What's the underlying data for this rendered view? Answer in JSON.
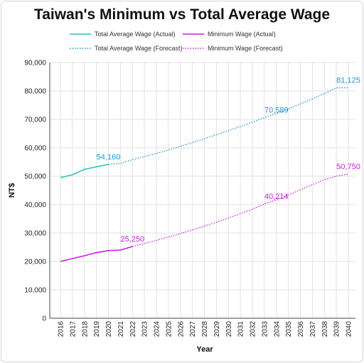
{
  "chart_data": {
    "type": "line",
    "title": "Taiwan's Minimum vs Total Average Wage",
    "xlabel": "Year",
    "ylabel": "NT$",
    "ylim": [
      0,
      90000
    ],
    "yticks": [
      0,
      10000,
      20000,
      30000,
      40000,
      50000,
      60000,
      70000,
      80000,
      90000
    ],
    "ytick_labels": [
      "0",
      "10,000",
      "20,000",
      "30,000",
      "40,000",
      "50,000",
      "60,000",
      "70,000",
      "80,000",
      "90,000"
    ],
    "xlim": [
      2016,
      2040
    ],
    "x_ticks": [
      "2016",
      "2017",
      "2018",
      "2019",
      "2020",
      "2021",
      "2022",
      "2023",
      "2024",
      "2025",
      "2026",
      "2027",
      "2028",
      "2029",
      "2030",
      "2031",
      "2032",
      "2033",
      "2034",
      "2035",
      "2036",
      "2037",
      "2038",
      "2039",
      "2040"
    ],
    "grid": true,
    "legend_position": "top-left",
    "series": [
      {
        "name": "Total Average Wage (Actual)",
        "style": "solid",
        "color": "#2ec4b6",
        "x": [
          2016,
          2017,
          2018,
          2019,
          2020
        ],
        "values": [
          49500,
          50500,
          52400,
          53300,
          54160
        ]
      },
      {
        "name": "Minimum Wage (Actual)",
        "style": "solid",
        "color": "#c81ee0",
        "x": [
          2016,
          2017,
          2018,
          2019,
          2020,
          2021,
          2022
        ],
        "values": [
          20008,
          21009,
          22000,
          23100,
          23800,
          24000,
          25250
        ]
      },
      {
        "name": "Total Average Wage (Forecast)",
        "style": "dotted",
        "color": "#1e96cc",
        "x": [
          2020,
          2021,
          2022,
          2023,
          2024,
          2025,
          2026,
          2027,
          2028,
          2029,
          2030,
          2031,
          2032,
          2033,
          2034,
          2035,
          2036,
          2037,
          2038,
          2039,
          2040
        ],
        "values": [
          54160,
          54500,
          55800,
          56900,
          58000,
          59200,
          60500,
          61800,
          63200,
          64600,
          66000,
          67500,
          69000,
          70589,
          72100,
          73700,
          75400,
          77200,
          79100,
          81100,
          81125
        ]
      },
      {
        "name": "Minimum Wage (Forecast)",
        "style": "dotted",
        "color": "#c81ee0",
        "x": [
          2022,
          2023,
          2024,
          2025,
          2026,
          2027,
          2028,
          2029,
          2030,
          2031,
          2032,
          2033,
          2034,
          2035,
          2036,
          2037,
          2038,
          2039,
          2040
        ],
        "values": [
          25250,
          26300,
          27400,
          28600,
          29800,
          31100,
          32400,
          33800,
          35300,
          36800,
          38400,
          40214,
          41700,
          43400,
          45200,
          47000,
          48800,
          50000,
          50750
        ]
      }
    ],
    "annotations": [
      {
        "text": "54,160",
        "x": 2020,
        "y": 54160,
        "color": "#1e96cc"
      },
      {
        "text": "25,250",
        "x": 2022,
        "y": 25250,
        "color": "#c81ee0"
      },
      {
        "text": "70,589",
        "x": 2034,
        "y": 70589,
        "color": "#1e96cc"
      },
      {
        "text": "40,214",
        "x": 2034,
        "y": 40214,
        "color": "#c81ee0"
      },
      {
        "text": "81,125",
        "x": 2040,
        "y": 81125,
        "color": "#1e96cc"
      },
      {
        "text": "50,750",
        "x": 2040,
        "y": 50750,
        "color": "#c81ee0"
      }
    ]
  }
}
